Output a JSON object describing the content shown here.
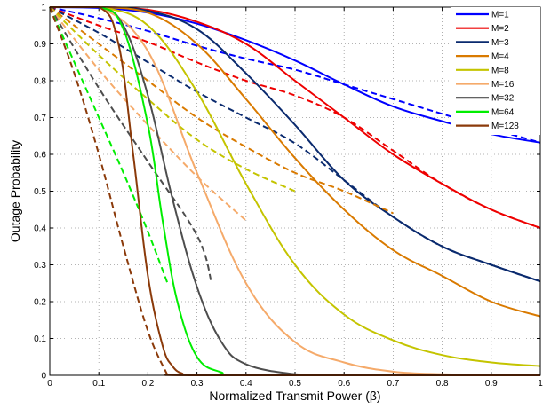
{
  "chart_data": {
    "type": "line",
    "xlabel": "Normalized Transmit Power (β)",
    "ylabel": "Outage Probability",
    "xlim": [
      0,
      1
    ],
    "ylim": [
      0,
      1
    ],
    "x_ticks": [
      "0",
      "0.1",
      "0.2",
      "0.3",
      "0.4",
      "0.5",
      "0.6",
      "0.7",
      "0.8",
      "0.9",
      "1"
    ],
    "y_ticks": [
      "0",
      "0.1",
      "0.2",
      "0.3",
      "0.4",
      "0.5",
      "0.6",
      "0.7",
      "0.8",
      "0.9",
      "1"
    ],
    "grid": true,
    "legend_position": "top-right",
    "solid_style": "solid",
    "dashed_style": "dashed",
    "series": [
      {
        "name": "M=1",
        "color": "#0000ff",
        "solid": [
          [
            0,
            1
          ],
          [
            0.1,
            0.998
          ],
          [
            0.2,
            0.985
          ],
          [
            0.3,
            0.955
          ],
          [
            0.4,
            0.91
          ],
          [
            0.5,
            0.855
          ],
          [
            0.6,
            0.79
          ],
          [
            0.7,
            0.73
          ],
          [
            0.8,
            0.69
          ],
          [
            0.9,
            0.655
          ],
          [
            1,
            0.632
          ]
        ],
        "dashed": [
          [
            0,
            1
          ],
          [
            0.1,
            0.97
          ],
          [
            0.2,
            0.935
          ],
          [
            0.3,
            0.895
          ],
          [
            0.4,
            0.86
          ],
          [
            0.5,
            0.83
          ],
          [
            0.6,
            0.79
          ],
          [
            0.7,
            0.75
          ],
          [
            0.8,
            0.71
          ],
          [
            0.9,
            0.67
          ],
          [
            1,
            0.632
          ]
        ]
      },
      {
        "name": "M=2",
        "color": "#ee0000",
        "solid": [
          [
            0,
            1
          ],
          [
            0.1,
            1
          ],
          [
            0.2,
            0.993
          ],
          [
            0.3,
            0.96
          ],
          [
            0.4,
            0.9
          ],
          [
            0.5,
            0.8
          ],
          [
            0.6,
            0.7
          ],
          [
            0.7,
            0.6
          ],
          [
            0.8,
            0.52
          ],
          [
            0.9,
            0.45
          ],
          [
            1,
            0.4
          ]
        ],
        "dashed": [
          [
            0,
            1
          ],
          [
            0.1,
            0.95
          ],
          [
            0.2,
            0.905
          ],
          [
            0.3,
            0.85
          ],
          [
            0.4,
            0.8
          ],
          [
            0.5,
            0.76
          ],
          [
            0.6,
            0.7
          ],
          [
            0.7,
            0.61
          ],
          [
            0.8,
            0.52
          ],
          [
            0.9,
            0.45
          ],
          [
            1,
            0.4
          ]
        ]
      },
      {
        "name": "M=3",
        "color": "#0a2a6e",
        "solid": [
          [
            0,
            1
          ],
          [
            0.1,
            1
          ],
          [
            0.2,
            0.99
          ],
          [
            0.3,
            0.94
          ],
          [
            0.4,
            0.82
          ],
          [
            0.5,
            0.68
          ],
          [
            0.6,
            0.53
          ],
          [
            0.7,
            0.43
          ],
          [
            0.8,
            0.35
          ],
          [
            0.9,
            0.3
          ],
          [
            1,
            0.255
          ]
        ],
        "dashed": [
          [
            0,
            1
          ],
          [
            0.1,
            0.93
          ],
          [
            0.2,
            0.85
          ],
          [
            0.3,
            0.77
          ],
          [
            0.4,
            0.7
          ],
          [
            0.5,
            0.63
          ],
          [
            0.6,
            0.53
          ],
          [
            0.7,
            0.43
          ],
          [
            0.8,
            0.35
          ],
          [
            0.9,
            0.3
          ],
          [
            1,
            0.255
          ]
        ]
      },
      {
        "name": "M=4",
        "color": "#d97a00",
        "solid": [
          [
            0,
            1
          ],
          [
            0.1,
            1
          ],
          [
            0.2,
            0.985
          ],
          [
            0.3,
            0.9
          ],
          [
            0.4,
            0.75
          ],
          [
            0.5,
            0.59
          ],
          [
            0.6,
            0.45
          ],
          [
            0.7,
            0.34
          ],
          [
            0.8,
            0.27
          ],
          [
            0.9,
            0.2
          ],
          [
            1,
            0.16
          ]
        ],
        "dashed": [
          [
            0,
            1
          ],
          [
            0.1,
            0.9
          ],
          [
            0.2,
            0.8
          ],
          [
            0.3,
            0.7
          ],
          [
            0.4,
            0.62
          ],
          [
            0.5,
            0.55
          ],
          [
            0.6,
            0.5
          ],
          [
            0.7,
            0.44
          ]
        ]
      },
      {
        "name": "M=8",
        "color": "#c4c400",
        "solid": [
          [
            0,
            1
          ],
          [
            0.1,
            1
          ],
          [
            0.2,
            0.95
          ],
          [
            0.3,
            0.77
          ],
          [
            0.4,
            0.52
          ],
          [
            0.5,
            0.3
          ],
          [
            0.6,
            0.165
          ],
          [
            0.7,
            0.095
          ],
          [
            0.8,
            0.055
          ],
          [
            0.9,
            0.035
          ],
          [
            1,
            0.025
          ]
        ],
        "dashed": [
          [
            0,
            1
          ],
          [
            0.1,
            0.87
          ],
          [
            0.2,
            0.75
          ],
          [
            0.3,
            0.64
          ],
          [
            0.4,
            0.56
          ],
          [
            0.5,
            0.5
          ]
        ]
      },
      {
        "name": "M=16",
        "color": "#f5aa6a",
        "solid": [
          [
            0,
            1
          ],
          [
            0.1,
            1
          ],
          [
            0.2,
            0.88
          ],
          [
            0.3,
            0.55
          ],
          [
            0.4,
            0.25
          ],
          [
            0.5,
            0.09
          ],
          [
            0.6,
            0.035
          ],
          [
            0.7,
            0.01
          ],
          [
            0.8,
            0.003
          ],
          [
            0.9,
            0.001
          ],
          [
            1,
            0
          ]
        ],
        "dashed": [
          [
            0,
            1
          ],
          [
            0.1,
            0.83
          ],
          [
            0.2,
            0.68
          ],
          [
            0.3,
            0.54
          ],
          [
            0.4,
            0.42
          ]
        ]
      },
      {
        "name": "M=32",
        "color": "#4d4d4d",
        "solid": [
          [
            0,
            1
          ],
          [
            0.1,
            1
          ],
          [
            0.15,
            0.95
          ],
          [
            0.2,
            0.76
          ],
          [
            0.25,
            0.48
          ],
          [
            0.3,
            0.24
          ],
          [
            0.35,
            0.09
          ],
          [
            0.4,
            0.03
          ],
          [
            0.5,
            0.003
          ],
          [
            0.6,
            0
          ],
          [
            1,
            0
          ]
        ],
        "dashed": [
          [
            0,
            1
          ],
          [
            0.1,
            0.78
          ],
          [
            0.2,
            0.58
          ],
          [
            0.3,
            0.38
          ],
          [
            0.33,
            0.25
          ]
        ]
      },
      {
        "name": "M=64",
        "color": "#00ee00",
        "solid": [
          [
            0,
            1
          ],
          [
            0.1,
            1
          ],
          [
            0.15,
            0.94
          ],
          [
            0.2,
            0.68
          ],
          [
            0.23,
            0.42
          ],
          [
            0.26,
            0.2
          ],
          [
            0.3,
            0.05
          ],
          [
            0.35,
            0.008
          ],
          [
            0.4,
            0
          ],
          [
            1,
            0
          ]
        ],
        "dashed": [
          [
            0,
            1
          ],
          [
            0.05,
            0.85
          ],
          [
            0.1,
            0.7
          ],
          [
            0.15,
            0.55
          ],
          [
            0.2,
            0.39
          ],
          [
            0.24,
            0.25
          ]
        ]
      },
      {
        "name": "M=128",
        "color": "#8b3a0a",
        "solid": [
          [
            0,
            1
          ],
          [
            0.1,
            1
          ],
          [
            0.14,
            0.9
          ],
          [
            0.17,
            0.6
          ],
          [
            0.2,
            0.27
          ],
          [
            0.23,
            0.08
          ],
          [
            0.25,
            0.025
          ],
          [
            0.27,
            0.005
          ],
          [
            0.3,
            0
          ],
          [
            1,
            0
          ]
        ],
        "dashed": [
          [
            0,
            1
          ],
          [
            0.05,
            0.82
          ],
          [
            0.1,
            0.6
          ],
          [
            0.15,
            0.35
          ],
          [
            0.2,
            0.12
          ],
          [
            0.24,
            0
          ]
        ]
      }
    ]
  }
}
